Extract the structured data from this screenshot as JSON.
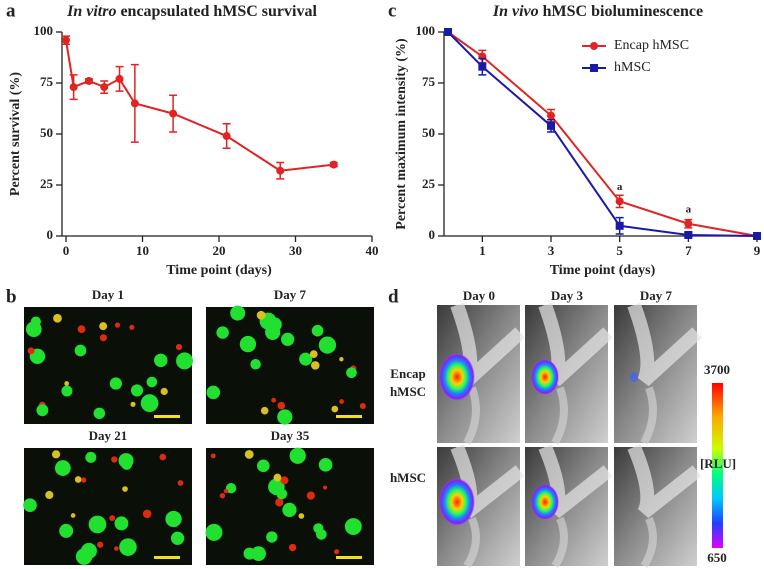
{
  "chart_data": [
    {
      "type": "line",
      "title": [
        "In vitro",
        "encapsulated hMSC survival"
      ],
      "x_label": "Time point (days)",
      "y_label": "Percent survival (%)",
      "xlim": [
        0,
        40
      ],
      "xticks": [
        0,
        10,
        20,
        30,
        40
      ],
      "ylim": [
        0,
        100
      ],
      "yticks": [
        0,
        25,
        50,
        75,
        100
      ],
      "x": [
        0,
        1,
        3,
        5,
        7,
        9,
        14,
        21,
        28,
        35
      ],
      "series": [
        {
          "name": null,
          "color": "#e02424",
          "values": [
            96,
            73,
            76,
            73,
            77,
            65,
            60,
            49,
            32,
            35
          ],
          "errors": [
            2,
            6,
            1,
            3,
            6,
            19,
            9,
            6,
            4,
            1
          ]
        }
      ]
    },
    {
      "type": "line",
      "title": [
        "In vivo",
        "hMSC bioluminescence"
      ],
      "x_label": "Time point (days)",
      "y_label": "Percent maximum intensity (%)",
      "xlim": [
        0,
        9
      ],
      "xticks": [
        1,
        3,
        5,
        7,
        9
      ],
      "ylim": [
        0,
        100
      ],
      "yticks": [
        0,
        25,
        50,
        75,
        100
      ],
      "x": [
        0,
        1,
        3,
        5,
        7,
        9
      ],
      "legend": "upper right",
      "annotations": [
        {
          "text": "a",
          "x": 5,
          "y": 17
        },
        {
          "text": "a",
          "x": 7,
          "y": 6
        }
      ],
      "series": [
        {
          "name": "Encap hMSC",
          "color": "#e02424",
          "marker": "circle",
          "values": [
            100,
            88,
            59,
            17,
            6,
            0
          ],
          "errors": [
            0,
            3,
            3,
            3,
            2,
            0
          ]
        },
        {
          "name": "hMSC",
          "color": "#1a1aa8",
          "marker": "square",
          "values": [
            100,
            83,
            54,
            5,
            0.5,
            0
          ],
          "errors": [
            0,
            4,
            3,
            4,
            1,
            0
          ]
        }
      ]
    }
  ],
  "panel_labels": [
    "a",
    "b",
    "c",
    "d"
  ],
  "micrographs": {
    "labels": [
      "Day 1",
      "Day 7",
      "Day 21",
      "Day 35"
    ]
  },
  "imaging": {
    "columns": [
      "Day 0",
      "Day 3",
      "Day 7"
    ],
    "rows": [
      [
        "Encap",
        "hMSC"
      ],
      [
        "hMSC"
      ]
    ],
    "colorbar": {
      "max": 3700,
      "unit": "[RLU]",
      "min": 650
    }
  }
}
